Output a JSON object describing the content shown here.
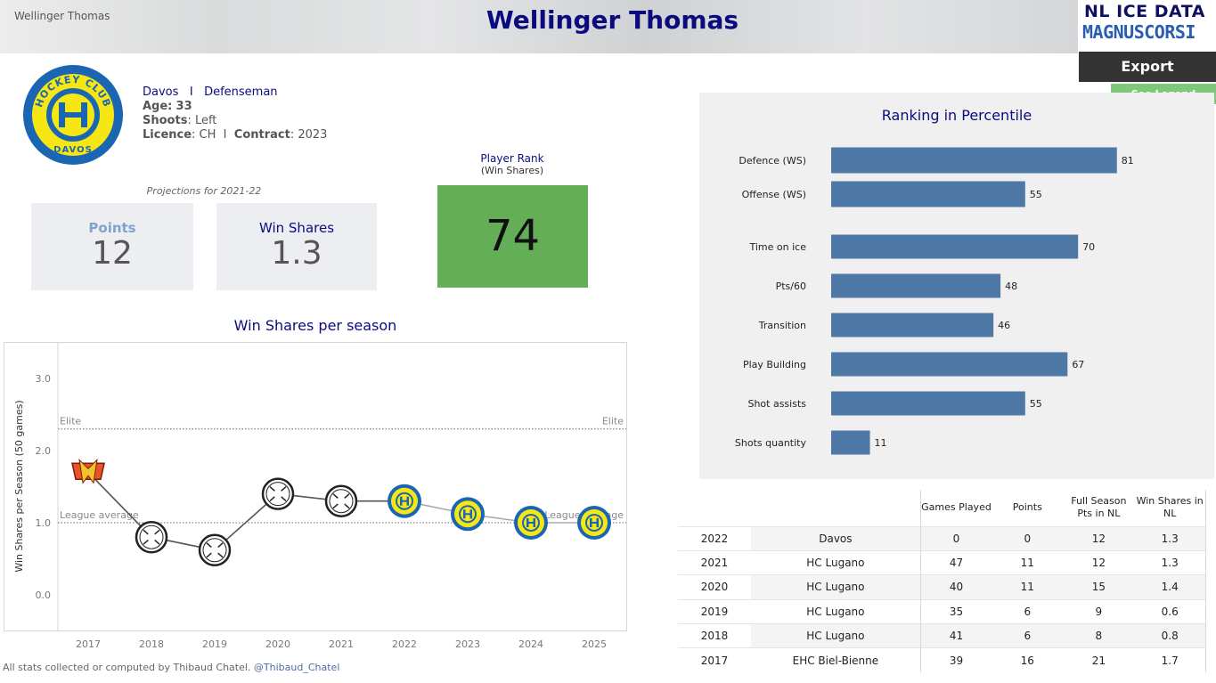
{
  "header": {
    "small_title": "Wellinger Thomas",
    "title": "Wellinger Thomas"
  },
  "brand": {
    "line1": "NL ICE DATA",
    "line2": "MAGNUSCORSI"
  },
  "buttons": {
    "export": "Export",
    "legend": "See Legend"
  },
  "player": {
    "team": "Davos",
    "separator": "I",
    "position": "Defenseman",
    "age_label": "Age:",
    "age": "33",
    "shoots_label": "Shoots",
    "shoots": ": Left",
    "licence_label": "Licence",
    "licence": ": CH",
    "contract_label": "Contract",
    "contract": ": 2023",
    "logo_text_top": "HOCKEY CLUB",
    "logo_text_bottom": "DAVOS"
  },
  "projections": {
    "caption": "Projections for 2021-22",
    "points_label": "Points",
    "points_value": "12",
    "ws_label": "Win Shares",
    "ws_value": "1.3"
  },
  "player_rank": {
    "title": "Player Rank",
    "subtitle": "(Win Shares)",
    "value": "74"
  },
  "ws_chart": {
    "title": "Win Shares per season",
    "ylabel": "Win Shares per Season (50 games)",
    "elite_label": "Elite",
    "average_label": "League average",
    "elite_value": 2.3,
    "average_value": 1.0,
    "ylim": [
      -0.5,
      3.5
    ],
    "yticks": [
      "3.0",
      "2.0",
      "1.0",
      "0.0"
    ],
    "ytick_values": [
      3.0,
      2.0,
      1.0,
      0.0
    ],
    "points": [
      {
        "year": "2017",
        "value": 1.7,
        "team": "EHC Biel-Bienne",
        "style": "biel"
      },
      {
        "year": "2018",
        "value": 0.8,
        "team": "HC Lugano",
        "style": "lugano"
      },
      {
        "year": "2019",
        "value": 0.62,
        "team": "HC Lugano",
        "style": "lugano"
      },
      {
        "year": "2020",
        "value": 1.4,
        "team": "HC Lugano",
        "style": "lugano"
      },
      {
        "year": "2021",
        "value": 1.3,
        "team": "HC Lugano",
        "style": "lugano"
      },
      {
        "year": "2022",
        "value": 1.3,
        "team": "Davos",
        "style": "davos"
      },
      {
        "year": "2023",
        "value": 1.12,
        "team": "Davos",
        "style": "davos"
      },
      {
        "year": "2024",
        "value": 1.0,
        "team": "Davos",
        "style": "davos"
      },
      {
        "year": "2025",
        "value": 1.0,
        "team": "Davos",
        "style": "davos"
      }
    ]
  },
  "chart_data": [
    {
      "type": "bar",
      "title": "Ranking in Percentile",
      "categories": [
        "Defence (WS)",
        "Offense (WS)",
        "Time on ice",
        "Pts/60",
        "Transition",
        "Play Building",
        "Shot assists",
        "Shots quantity"
      ],
      "values": [
        81,
        55,
        70,
        48,
        46,
        67,
        55,
        11
      ],
      "xlim": [
        0,
        100
      ],
      "color": "#4e79a7"
    },
    {
      "type": "line",
      "title": "Win Shares per season",
      "x": [
        "2017",
        "2018",
        "2019",
        "2020",
        "2021",
        "2022",
        "2023",
        "2024",
        "2025"
      ],
      "values": [
        1.7,
        0.8,
        0.62,
        1.4,
        1.3,
        1.3,
        1.12,
        1.0,
        1.0
      ],
      "ylabel": "Win Shares per Season (50 games)",
      "ylim": [
        -0.5,
        3.5
      ]
    }
  ],
  "history_table": {
    "headers": [
      "",
      "",
      "Games Played",
      "Points",
      "Full Season Pts in NL",
      "Win Shares in NL"
    ],
    "rows": [
      [
        "2022",
        "Davos",
        "0",
        "0",
        "12",
        "1.3"
      ],
      [
        "2021",
        "HC Lugano",
        "47",
        "11",
        "12",
        "1.3"
      ],
      [
        "2020",
        "HC Lugano",
        "40",
        "11",
        "15",
        "1.4"
      ],
      [
        "2019",
        "HC Lugano",
        "35",
        "6",
        "9",
        "0.6"
      ],
      [
        "2018",
        "HC Lugano",
        "41",
        "6",
        "8",
        "0.8"
      ],
      [
        "2017",
        "EHC Biel-Bienne",
        "39",
        "16",
        "21",
        "1.7"
      ]
    ]
  },
  "footer": {
    "text": "All stats collected or computed by Thibaud Chatel.",
    "handle": "@Thibaud_Chatel"
  },
  "colors": {
    "title_blue": "#0b0b80",
    "bar_blue": "#4e79a7",
    "rank_green": "#65ae58",
    "davos_yellow": "#f5e614",
    "davos_blue": "#1a66b3"
  }
}
